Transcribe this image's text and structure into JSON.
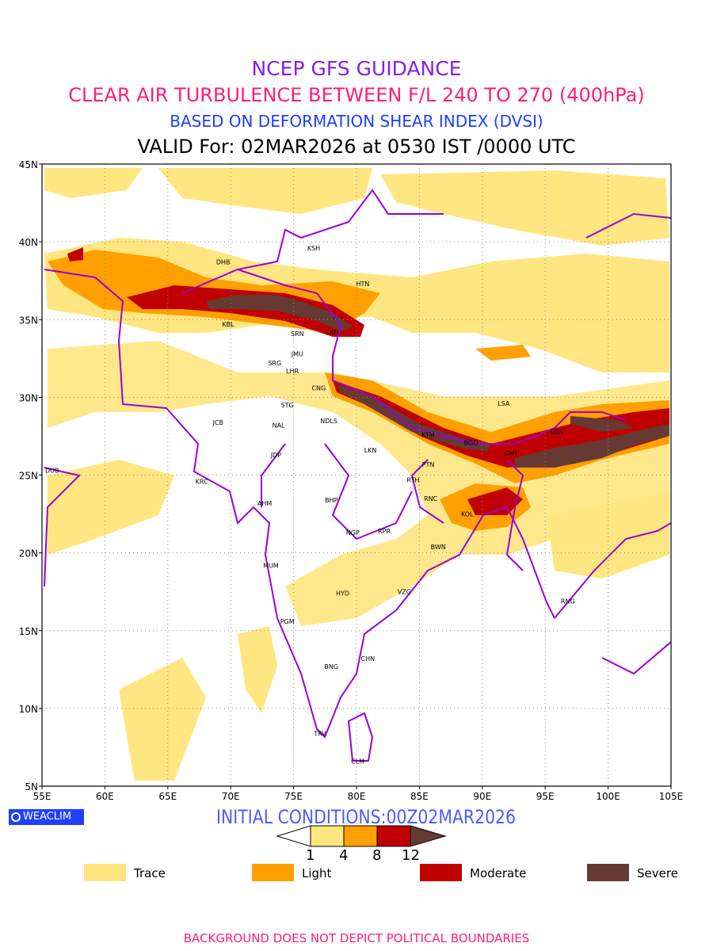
{
  "header": {
    "title": "NCEP GFS GUIDANCE",
    "subtitle": "CLEAR AIR TURBULENCE BETWEEN F/L 240 TO 270 (400hPa)",
    "basis": "BASED ON DEFORMATION SHEAR INDEX (DVSI)",
    "valid": "VALID For: 02MAR2026 at 0530 IST /0000 UTC"
  },
  "map": {
    "lon_range": [
      55,
      105
    ],
    "lat_range": [
      5,
      45
    ],
    "x_ticks": [
      "55E",
      "60E",
      "65E",
      "70E",
      "75E",
      "80E",
      "85E",
      "90E",
      "95E",
      "100E",
      "105E"
    ],
    "y_ticks": [
      "5N",
      "10N",
      "15N",
      "20N",
      "25N",
      "30N",
      "35N",
      "40N",
      "45N"
    ],
    "cities": [
      {
        "code": "KSH",
        "lon": 76.6,
        "lat": 39.6
      },
      {
        "code": "DHB",
        "lon": 69.4,
        "lat": 38.7
      },
      {
        "code": "HTN",
        "lon": 80.5,
        "lat": 37.3
      },
      {
        "code": "KBL",
        "lon": 69.8,
        "lat": 34.7
      },
      {
        "code": "SRN",
        "lon": 75.3,
        "lat": 34.1
      },
      {
        "code": "LEH",
        "lon": 78.1,
        "lat": 34.2
      },
      {
        "code": "JMU",
        "lon": 75.3,
        "lat": 32.8
      },
      {
        "code": "SRG",
        "lon": 73.5,
        "lat": 32.2
      },
      {
        "code": "LHR",
        "lon": 74.9,
        "lat": 31.7
      },
      {
        "code": "CNG",
        "lon": 77.0,
        "lat": 30.6
      },
      {
        "code": "STG",
        "lon": 74.5,
        "lat": 29.5
      },
      {
        "code": "LSA",
        "lon": 91.7,
        "lat": 29.6
      },
      {
        "code": "JCB",
        "lon": 69.0,
        "lat": 28.4
      },
      {
        "code": "NAL",
        "lon": 73.8,
        "lat": 28.2
      },
      {
        "code": "NDLS",
        "lon": 77.8,
        "lat": 28.5
      },
      {
        "code": "KTM",
        "lon": 85.7,
        "lat": 27.6
      },
      {
        "code": "CBA",
        "lon": 95.9,
        "lat": 27.8
      },
      {
        "code": "BGD",
        "lon": 89.1,
        "lat": 27.1
      },
      {
        "code": "GHT",
        "lon": 92.3,
        "lat": 26.4
      },
      {
        "code": "JDP",
        "lon": 73.6,
        "lat": 26.3
      },
      {
        "code": "LKN",
        "lon": 81.1,
        "lat": 26.6
      },
      {
        "code": "PTN",
        "lon": 85.7,
        "lat": 25.7
      },
      {
        "code": "DUB",
        "lon": 55.8,
        "lat": 25.3
      },
      {
        "code": "KRC",
        "lon": 67.7,
        "lat": 24.6
      },
      {
        "code": "RTH",
        "lon": 84.5,
        "lat": 24.7
      },
      {
        "code": "AHM",
        "lon": 72.7,
        "lat": 23.2
      },
      {
        "code": "BHP",
        "lon": 78.0,
        "lat": 23.4
      },
      {
        "code": "RNC",
        "lon": 85.9,
        "lat": 23.5
      },
      {
        "code": "KOL",
        "lon": 88.8,
        "lat": 22.5
      },
      {
        "code": "NGP",
        "lon": 79.7,
        "lat": 21.3
      },
      {
        "code": "RPR",
        "lon": 82.2,
        "lat": 21.4
      },
      {
        "code": "BWN",
        "lon": 86.5,
        "lat": 20.4
      },
      {
        "code": "MUM",
        "lon": 73.2,
        "lat": 19.2
      },
      {
        "code": "HYD",
        "lon": 78.9,
        "lat": 17.4
      },
      {
        "code": "VZG",
        "lon": 83.8,
        "lat": 17.5
      },
      {
        "code": "RNG",
        "lon": 96.8,
        "lat": 16.9
      },
      {
        "code": "PGM",
        "lon": 74.5,
        "lat": 15.6
      },
      {
        "code": "CHN",
        "lon": 80.9,
        "lat": 13.2
      },
      {
        "code": "BNG",
        "lon": 78.0,
        "lat": 12.7
      },
      {
        "code": "TRV",
        "lon": 77.1,
        "lat": 8.4
      },
      {
        "code": "CLM",
        "lon": 80.1,
        "lat": 6.6
      }
    ]
  },
  "branding": {
    "logo_text": "WEACLIM"
  },
  "initial_conditions": "INITIAL CONDITIONS:00Z02MAR2026",
  "colorbar": {
    "thresholds": [
      "1",
      "4",
      "8",
      "12"
    ]
  },
  "legend": [
    {
      "label": "Trace",
      "color": "#ffe680"
    },
    {
      "label": "Light",
      "color": "#ffa000"
    },
    {
      "label": "Moderate",
      "color": "#c00000"
    },
    {
      "label": "Severe",
      "color": "#663a32"
    }
  ],
  "footer": "BACKGROUND DOES NOT DEPICT POLITICAL BOUNDARIES"
}
